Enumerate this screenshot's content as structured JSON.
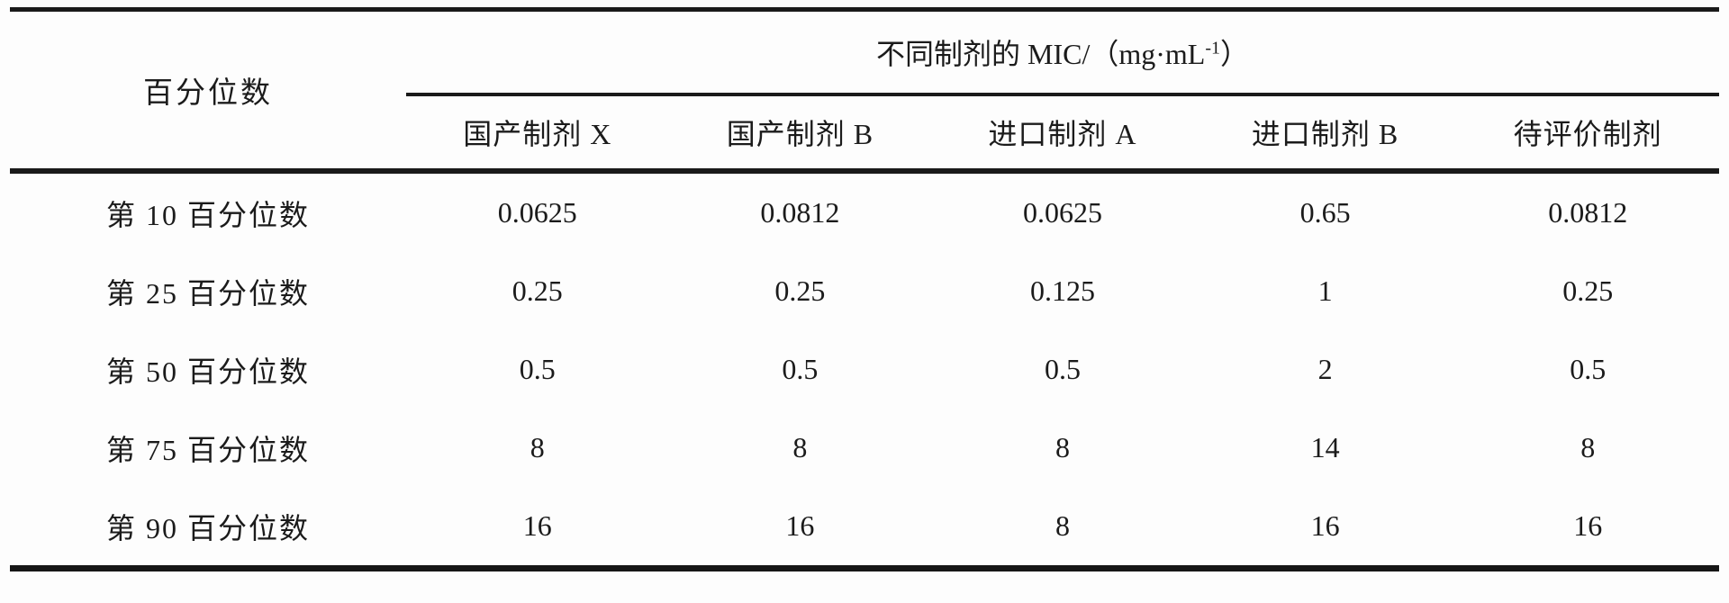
{
  "table": {
    "corner_header": "百分位数",
    "span_header": {
      "text": "不同制剂的 MIC/（mg·mL",
      "superscript": "-1",
      "suffix": "）"
    },
    "columns": [
      "国产制剂 X",
      "国产制剂 B",
      "进口制剂 A",
      "进口制剂 B",
      "待评价制剂"
    ],
    "rows": [
      {
        "label": "第 10 百分位数",
        "values": [
          "0.0625",
          "0.0812",
          "0.0625",
          "0.65",
          "0.0812"
        ]
      },
      {
        "label": "第 25 百分位数",
        "values": [
          "0.25",
          "0.25",
          "0.125",
          "1",
          "0.25"
        ]
      },
      {
        "label": "第 50 百分位数",
        "values": [
          "0.5",
          "0.5",
          "0.5",
          "2",
          "0.5"
        ]
      },
      {
        "label": "第 75 百分位数",
        "values": [
          "8",
          "8",
          "8",
          "14",
          "8"
        ]
      },
      {
        "label": "第 90 百分位数",
        "values": [
          "16",
          "16",
          "8",
          "16",
          "16"
        ]
      }
    ]
  },
  "colors": {
    "rule": "#1a1a1a",
    "text": "#1b1b1b",
    "background": "#fdfdfd"
  },
  "chart_data": {
    "type": "table",
    "title": "不同制剂的 MIC/（mg·mL⁻¹）",
    "row_header": "百分位数",
    "columns": [
      "国产制剂 X",
      "国产制剂 B",
      "进口制剂 A",
      "进口制剂 B",
      "待评价制剂"
    ],
    "rows": [
      {
        "percentile": "第 10 百分位数",
        "values": [
          0.0625,
          0.0812,
          0.0625,
          0.65,
          0.0812
        ]
      },
      {
        "percentile": "第 25 百分位数",
        "values": [
          0.25,
          0.25,
          0.125,
          1,
          0.25
        ]
      },
      {
        "percentile": "第 50 百分位数",
        "values": [
          0.5,
          0.5,
          0.5,
          2,
          0.5
        ]
      },
      {
        "percentile": "第 75 百分位数",
        "values": [
          8,
          8,
          8,
          14,
          8
        ]
      },
      {
        "percentile": "第 90 百分位数",
        "values": [
          16,
          16,
          8,
          16,
          16
        ]
      }
    ]
  }
}
